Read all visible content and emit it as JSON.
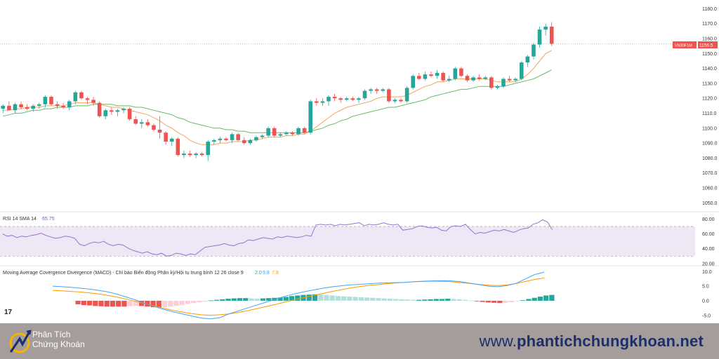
{
  "chart_data": [
    {
      "type": "candlestick",
      "symbol_label": "VN30F1M",
      "last_price": "1156.5",
      "y_ticks": [
        "1180.0",
        "1170.0",
        "1160.0",
        "1150.0",
        "1140.0",
        "1130.0",
        "1120.0",
        "1110.0",
        "1100.0",
        "1090.0",
        "1080.0",
        "1070.0",
        "1060.0",
        "1050.0"
      ],
      "ylim": [
        1045,
        1183
      ],
      "last_price_value": 1156.5,
      "colors": {
        "up": "#26a69a",
        "down": "#ef5350",
        "sma_fast": "#f4a460",
        "sma_slow": "#66bb6a"
      },
      "candles": [
        {
          "o": 1113,
          "h": 1116,
          "l": 1110,
          "c": 1115
        },
        {
          "o": 1115,
          "h": 1118,
          "l": 1112,
          "c": 1112
        },
        {
          "o": 1112,
          "h": 1117,
          "l": 1110,
          "c": 1116
        },
        {
          "o": 1116,
          "h": 1118,
          "l": 1113,
          "c": 1114
        },
        {
          "o": 1114,
          "h": 1116,
          "l": 1112,
          "c": 1113
        },
        {
          "o": 1113,
          "h": 1116,
          "l": 1111,
          "c": 1115
        },
        {
          "o": 1115,
          "h": 1117,
          "l": 1113,
          "c": 1116
        },
        {
          "o": 1116,
          "h": 1122,
          "l": 1114,
          "c": 1121
        },
        {
          "o": 1121,
          "h": 1122,
          "l": 1115,
          "c": 1116
        },
        {
          "o": 1116,
          "h": 1118,
          "l": 1113,
          "c": 1115
        },
        {
          "o": 1115,
          "h": 1117,
          "l": 1113,
          "c": 1114
        },
        {
          "o": 1114,
          "h": 1119,
          "l": 1112,
          "c": 1118
        },
        {
          "o": 1118,
          "h": 1125,
          "l": 1116,
          "c": 1124
        },
        {
          "o": 1124,
          "h": 1125,
          "l": 1119,
          "c": 1120
        },
        {
          "o": 1120,
          "h": 1121,
          "l": 1116,
          "c": 1119
        },
        {
          "o": 1119,
          "h": 1121,
          "l": 1115,
          "c": 1117
        },
        {
          "o": 1117,
          "h": 1118,
          "l": 1107,
          "c": 1108
        },
        {
          "o": 1108,
          "h": 1113,
          "l": 1106,
          "c": 1112
        },
        {
          "o": 1112,
          "h": 1114,
          "l": 1109,
          "c": 1111
        },
        {
          "o": 1111,
          "h": 1113,
          "l": 1108,
          "c": 1112
        },
        {
          "o": 1112,
          "h": 1114,
          "l": 1110,
          "c": 1113
        },
        {
          "o": 1113,
          "h": 1114,
          "l": 1105,
          "c": 1106
        },
        {
          "o": 1106,
          "h": 1108,
          "l": 1102,
          "c": 1103
        },
        {
          "o": 1103,
          "h": 1106,
          "l": 1100,
          "c": 1104
        },
        {
          "o": 1104,
          "h": 1106,
          "l": 1101,
          "c": 1102
        },
        {
          "o": 1102,
          "h": 1103,
          "l": 1098,
          "c": 1099
        },
        {
          "o": 1099,
          "h": 1108,
          "l": 1093,
          "c": 1097
        },
        {
          "o": 1097,
          "h": 1098,
          "l": 1089,
          "c": 1091
        },
        {
          "o": 1091,
          "h": 1094,
          "l": 1088,
          "c": 1093
        },
        {
          "o": 1093,
          "h": 1094,
          "l": 1081,
          "c": 1082
        },
        {
          "o": 1082,
          "h": 1085,
          "l": 1080,
          "c": 1083
        },
        {
          "o": 1083,
          "h": 1085,
          "l": 1081,
          "c": 1082
        },
        {
          "o": 1082,
          "h": 1084,
          "l": 1080,
          "c": 1083
        },
        {
          "o": 1083,
          "h": 1084,
          "l": 1081,
          "c": 1082
        },
        {
          "o": 1082,
          "h": 1092,
          "l": 1078,
          "c": 1091
        },
        {
          "o": 1091,
          "h": 1093,
          "l": 1089,
          "c": 1092
        },
        {
          "o": 1092,
          "h": 1094,
          "l": 1090,
          "c": 1093
        },
        {
          "o": 1093,
          "h": 1094,
          "l": 1091,
          "c": 1092
        },
        {
          "o": 1092,
          "h": 1097,
          "l": 1090,
          "c": 1096
        },
        {
          "o": 1096,
          "h": 1097,
          "l": 1091,
          "c": 1092
        },
        {
          "o": 1092,
          "h": 1094,
          "l": 1089,
          "c": 1090
        },
        {
          "o": 1090,
          "h": 1093,
          "l": 1089,
          "c": 1092
        },
        {
          "o": 1092,
          "h": 1095,
          "l": 1091,
          "c": 1094
        },
        {
          "o": 1094,
          "h": 1096,
          "l": 1093,
          "c": 1095
        },
        {
          "o": 1095,
          "h": 1101,
          "l": 1094,
          "c": 1100
        },
        {
          "o": 1100,
          "h": 1101,
          "l": 1094,
          "c": 1095
        },
        {
          "o": 1095,
          "h": 1097,
          "l": 1094,
          "c": 1096
        },
        {
          "o": 1096,
          "h": 1098,
          "l": 1095,
          "c": 1097
        },
        {
          "o": 1097,
          "h": 1098,
          "l": 1095,
          "c": 1096
        },
        {
          "o": 1096,
          "h": 1101,
          "l": 1095,
          "c": 1100
        },
        {
          "o": 1100,
          "h": 1101,
          "l": 1096,
          "c": 1097
        },
        {
          "o": 1097,
          "h": 1119,
          "l": 1096,
          "c": 1118
        },
        {
          "o": 1118,
          "h": 1120,
          "l": 1115,
          "c": 1117
        },
        {
          "o": 1117,
          "h": 1120,
          "l": 1115,
          "c": 1118
        },
        {
          "o": 1118,
          "h": 1122,
          "l": 1115,
          "c": 1121
        },
        {
          "o": 1121,
          "h": 1123,
          "l": 1118,
          "c": 1120
        },
        {
          "o": 1120,
          "h": 1121,
          "l": 1117,
          "c": 1119
        },
        {
          "o": 1119,
          "h": 1121,
          "l": 1118,
          "c": 1120
        },
        {
          "o": 1120,
          "h": 1121,
          "l": 1118,
          "c": 1119
        },
        {
          "o": 1119,
          "h": 1121,
          "l": 1117,
          "c": 1120
        },
        {
          "o": 1120,
          "h": 1126,
          "l": 1119,
          "c": 1125
        },
        {
          "o": 1125,
          "h": 1127,
          "l": 1123,
          "c": 1126
        },
        {
          "o": 1126,
          "h": 1127,
          "l": 1123,
          "c": 1125
        },
        {
          "o": 1125,
          "h": 1127,
          "l": 1124,
          "c": 1126
        },
        {
          "o": 1126,
          "h": 1127,
          "l": 1117,
          "c": 1118
        },
        {
          "o": 1118,
          "h": 1120,
          "l": 1117,
          "c": 1119
        },
        {
          "o": 1119,
          "h": 1120,
          "l": 1117,
          "c": 1118
        },
        {
          "o": 1118,
          "h": 1128,
          "l": 1117,
          "c": 1127
        },
        {
          "o": 1127,
          "h": 1136,
          "l": 1126,
          "c": 1135
        },
        {
          "o": 1135,
          "h": 1137,
          "l": 1132,
          "c": 1133
        },
        {
          "o": 1133,
          "h": 1138,
          "l": 1132,
          "c": 1136
        },
        {
          "o": 1136,
          "h": 1138,
          "l": 1134,
          "c": 1135
        },
        {
          "o": 1135,
          "h": 1139,
          "l": 1133,
          "c": 1137
        },
        {
          "o": 1137,
          "h": 1138,
          "l": 1131,
          "c": 1132
        },
        {
          "o": 1132,
          "h": 1135,
          "l": 1131,
          "c": 1133
        },
        {
          "o": 1133,
          "h": 1141,
          "l": 1132,
          "c": 1140
        },
        {
          "o": 1140,
          "h": 1141,
          "l": 1134,
          "c": 1135
        },
        {
          "o": 1135,
          "h": 1136,
          "l": 1131,
          "c": 1132
        },
        {
          "o": 1132,
          "h": 1135,
          "l": 1131,
          "c": 1134
        },
        {
          "o": 1134,
          "h": 1136,
          "l": 1132,
          "c": 1133
        },
        {
          "o": 1133,
          "h": 1135,
          "l": 1132,
          "c": 1134
        },
        {
          "o": 1134,
          "h": 1135,
          "l": 1126,
          "c": 1127
        },
        {
          "o": 1127,
          "h": 1129,
          "l": 1126,
          "c": 1128
        },
        {
          "o": 1128,
          "h": 1134,
          "l": 1127,
          "c": 1133
        },
        {
          "o": 1133,
          "h": 1135,
          "l": 1131,
          "c": 1132
        },
        {
          "o": 1132,
          "h": 1134,
          "l": 1131,
          "c": 1133
        },
        {
          "o": 1133,
          "h": 1145,
          "l": 1132,
          "c": 1144
        },
        {
          "o": 1144,
          "h": 1149,
          "l": 1141,
          "c": 1148
        },
        {
          "o": 1148,
          "h": 1157,
          "l": 1146,
          "c": 1156
        },
        {
          "o": 1156,
          "h": 1168,
          "l": 1154,
          "c": 1166
        },
        {
          "o": 1166,
          "h": 1170,
          "l": 1162,
          "c": 1168
        },
        {
          "o": 1168,
          "h": 1171,
          "l": 1155,
          "c": 1156.5
        }
      ],
      "sma_fast": [
        1112,
        1112,
        1113,
        1113,
        1114,
        1114,
        1114,
        1115,
        1115,
        1115,
        1115,
        1116,
        1117,
        1117,
        1117,
        1117,
        1116,
        1115,
        1114,
        1114,
        1113,
        1112,
        1111,
        1110,
        1109,
        1107,
        1105,
        1102,
        1100,
        1097,
        1095,
        1092,
        1090,
        1089,
        1089,
        1089,
        1090,
        1090,
        1091,
        1091,
        1091,
        1092,
        1092,
        1093,
        1094,
        1094,
        1094,
        1095,
        1095,
        1096,
        1096,
        1098,
        1101,
        1104,
        1107,
        1110,
        1112,
        1114,
        1115,
        1116,
        1117,
        1118,
        1120,
        1121,
        1121,
        1121,
        1121,
        1122,
        1124,
        1126,
        1128,
        1129,
        1131,
        1131,
        1132,
        1133,
        1133,
        1133,
        1133,
        1133,
        1133,
        1132,
        1131,
        1131,
        1131,
        1131,
        1133,
        1136,
        1140,
        1145,
        1150,
        1152
      ],
      "sma_slow": [
        1108,
        1109,
        1110,
        1110,
        1111,
        1112,
        1112,
        1113,
        1113,
        1114,
        1114,
        1114,
        1115,
        1115,
        1115,
        1116,
        1116,
        1116,
        1116,
        1115,
        1115,
        1115,
        1114,
        1114,
        1113,
        1112,
        1111,
        1110,
        1109,
        1107,
        1106,
        1104,
        1103,
        1102,
        1101,
        1100,
        1100,
        1099,
        1099,
        1098,
        1098,
        1097,
        1097,
        1097,
        1097,
        1097,
        1097,
        1097,
        1097,
        1097,
        1097,
        1098,
        1099,
        1100,
        1102,
        1103,
        1105,
        1106,
        1108,
        1109,
        1110,
        1111,
        1112,
        1113,
        1114,
        1114,
        1115,
        1116,
        1117,
        1118,
        1119,
        1121,
        1122,
        1123,
        1124,
        1125,
        1126,
        1126,
        1127,
        1128,
        1128,
        1128,
        1128,
        1128,
        1129,
        1130,
        1131,
        1132,
        1133,
        1135,
        1137,
        1139
      ]
    },
    {
      "type": "line",
      "label": "RSI 14 SMA 14",
      "value_text": "65.75",
      "y_ticks": [
        "80.00",
        "60.00",
        "40.00",
        "20.00"
      ],
      "ylim": [
        18,
        88
      ],
      "band": [
        30,
        70
      ],
      "colors": {
        "line": "#9575cd",
        "band": "#ede7f6"
      },
      "values": [
        60,
        57,
        58,
        55,
        57,
        56,
        58,
        59,
        61,
        58,
        56,
        54,
        55,
        57,
        56,
        54,
        46,
        44,
        47,
        49,
        48,
        50,
        46,
        44,
        46,
        45,
        41,
        38,
        36,
        34,
        36,
        33,
        32,
        34,
        30,
        31,
        34,
        33,
        31,
        33,
        32,
        37,
        42,
        43,
        44,
        45,
        47,
        45,
        44,
        47,
        48,
        52,
        51,
        53,
        55,
        54,
        53,
        56,
        55,
        57,
        56,
        55,
        56,
        58,
        57,
        72,
        73,
        72,
        73,
        71,
        73,
        72,
        73,
        74,
        75,
        71,
        73,
        72,
        73,
        75,
        73,
        72,
        73,
        65,
        66,
        67,
        70,
        71,
        69,
        68,
        69,
        65,
        64,
        70,
        71,
        70,
        73,
        66,
        60,
        62,
        61,
        63,
        65,
        64,
        66,
        64,
        62,
        65,
        67,
        68,
        73,
        75,
        79,
        76,
        65.75
      ]
    },
    {
      "type": "macd",
      "label": "Moving Average Covergence Divergence (MACD) - Chỉ báo Biến động Phân kỳ/Hội tụ trung bình 12 26 close 9",
      "hist_text": "2.0",
      "macd_text": "9.8",
      "signal_text": "7.8",
      "y_ticks": [
        "10.0",
        "5.0",
        "0.0",
        "-5.0"
      ],
      "ylim": [
        -6.5,
        11.5
      ],
      "colors": {
        "macd": "#42a5f5",
        "signal": "#ff9800",
        "hist_up_strong": "#26a69a",
        "hist_up_weak": "#b2dfdb",
        "hist_down_strong": "#ef5350",
        "hist_down_weak": "#ffcdd2"
      },
      "macd": [
        5.0,
        4.8,
        4.6,
        4.3,
        4.0,
        3.5,
        3.0,
        2.2,
        1.2,
        0.2,
        -1.0,
        -2.0,
        -3.0,
        -3.8,
        -4.5,
        -5.2,
        -5.9,
        -6.2,
        -5.8,
        -4.5,
        -3.5,
        -2.5,
        -1.5,
        -0.5,
        0.5,
        1.5,
        2.3,
        3.0,
        3.6,
        4.2,
        4.7,
        5.1,
        5.4,
        5.6,
        5.8,
        6.0,
        6.1,
        6.2,
        6.3,
        6.5,
        6.7,
        6.8,
        6.9,
        6.8,
        6.5,
        6.0,
        5.5,
        5.0,
        4.8,
        5.2,
        6.0,
        7.5,
        9.0,
        9.8
      ],
      "signal": [
        3.5,
        3.4,
        3.2,
        3.0,
        2.7,
        2.3,
        1.8,
        1.2,
        0.5,
        -0.3,
        -1.0,
        -1.8,
        -2.6,
        -3.3,
        -3.9,
        -4.4,
        -4.8,
        -5.0,
        -4.8,
        -4.5,
        -4.0,
        -3.4,
        -2.7,
        -2.0,
        -1.3,
        -0.5,
        0.3,
        1.0,
        1.7,
        2.4,
        3.1,
        3.7,
        4.3,
        4.8,
        5.2,
        5.5,
        5.8,
        6.1,
        6.3,
        6.5,
        6.6,
        6.7,
        6.6,
        6.5,
        6.2,
        5.9,
        5.6,
        5.3,
        5.2,
        5.4,
        5.9,
        6.6,
        7.3,
        7.8
      ],
      "hist": [
        0,
        0,
        0,
        0,
        0,
        0,
        0,
        0,
        0,
        0,
        0,
        0,
        0,
        -1.2,
        -1.5,
        -1.6,
        -1.8,
        -1.9,
        -2.0,
        -2.0,
        -2.0,
        -2.0,
        -1.9,
        -1.8,
        -1.8,
        -2.0,
        -2.2,
        -2.3,
        -2.2,
        -2.0,
        -1.7,
        -1.4,
        -1.1,
        -0.8,
        -0.5,
        -0.3,
        0.1,
        0.3,
        0.5,
        0.7,
        0.8,
        0.9,
        0.9,
        0.8,
        0.7,
        0.8,
        0.9,
        1.0,
        1.1,
        1.3,
        1.6,
        1.8,
        2.0,
        2.1,
        2.2,
        2.1,
        2.0,
        1.8,
        1.6,
        1.5,
        1.4,
        1.3,
        1.2,
        1.1,
        1.0,
        0.9,
        0.8,
        0.7,
        0.6,
        0.5,
        0.4,
        0.3,
        0.3,
        0.4,
        0.5,
        0.6,
        0.6,
        0.7,
        0.6,
        0.5,
        0.3,
        0.1,
        -0.2,
        -0.4,
        -0.6,
        -0.7,
        -0.8,
        -0.7,
        -0.5,
        -0.2,
        0.2,
        0.6,
        1.0,
        1.4,
        1.8,
        2.0
      ]
    }
  ],
  "brand": {
    "name_line1": "Phân Tích",
    "name_line2": "Chứng Khoán",
    "website_pre": "www.",
    "website_main": "phantichchungkhoan.net"
  },
  "tv_logo": "17"
}
